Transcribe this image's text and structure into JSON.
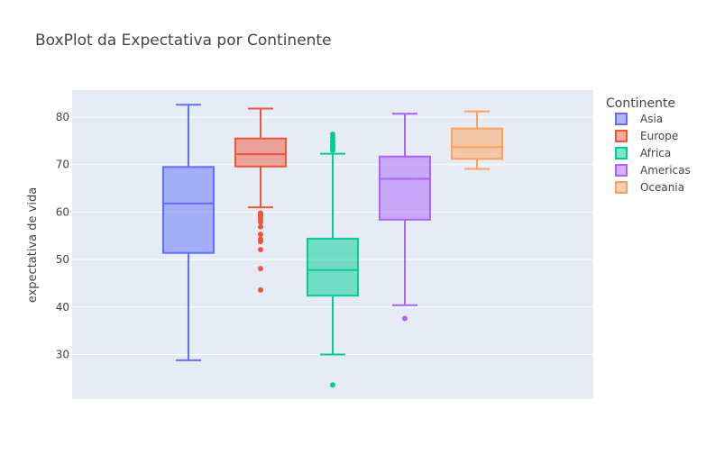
{
  "chart_data": {
    "type": "box",
    "title": "BoxPlot da Expectativa por Continente",
    "xlabel": "",
    "ylabel": "expectativa de vida",
    "ylim": [
      20,
      85
    ],
    "y_ticks": [
      30,
      40,
      50,
      60,
      70,
      80
    ],
    "grid": true,
    "legend": {
      "title": "Continente",
      "placement": "right"
    },
    "series": [
      {
        "name": "Asia",
        "color": "#636efa",
        "min": 28.8,
        "q1": 51.4,
        "median": 61.8,
        "q3": 69.5,
        "max": 82.6,
        "outliers": []
      },
      {
        "name": "Europe",
        "color": "#ef553b",
        "min": 61.0,
        "q1": 69.6,
        "median": 72.2,
        "q3": 75.5,
        "max": 81.8,
        "outliers": [
          59.8,
          59.5,
          59.3,
          58.9,
          58.5,
          57.9,
          56.9,
          55.3,
          54.3,
          53.8,
          52.1,
          48.1,
          43.6
        ]
      },
      {
        "name": "Africa",
        "color": "#00cc96",
        "min": 30.0,
        "q1": 42.4,
        "median": 47.8,
        "q3": 54.4,
        "max": 72.3,
        "outliers": [
          76.4,
          75.7,
          75.0,
          74.8,
          74.2,
          73.9,
          73.6,
          73.0,
          23.6
        ]
      },
      {
        "name": "Americas",
        "color": "#ab63fa",
        "min": 40.4,
        "q1": 58.4,
        "median": 67.0,
        "q3": 71.7,
        "max": 80.7,
        "outliers": [
          37.6
        ]
      },
      {
        "name": "Oceania",
        "color": "#ffa15a",
        "min": 69.1,
        "q1": 71.2,
        "median": 73.7,
        "q3": 77.6,
        "max": 81.2,
        "outliers": []
      }
    ]
  }
}
